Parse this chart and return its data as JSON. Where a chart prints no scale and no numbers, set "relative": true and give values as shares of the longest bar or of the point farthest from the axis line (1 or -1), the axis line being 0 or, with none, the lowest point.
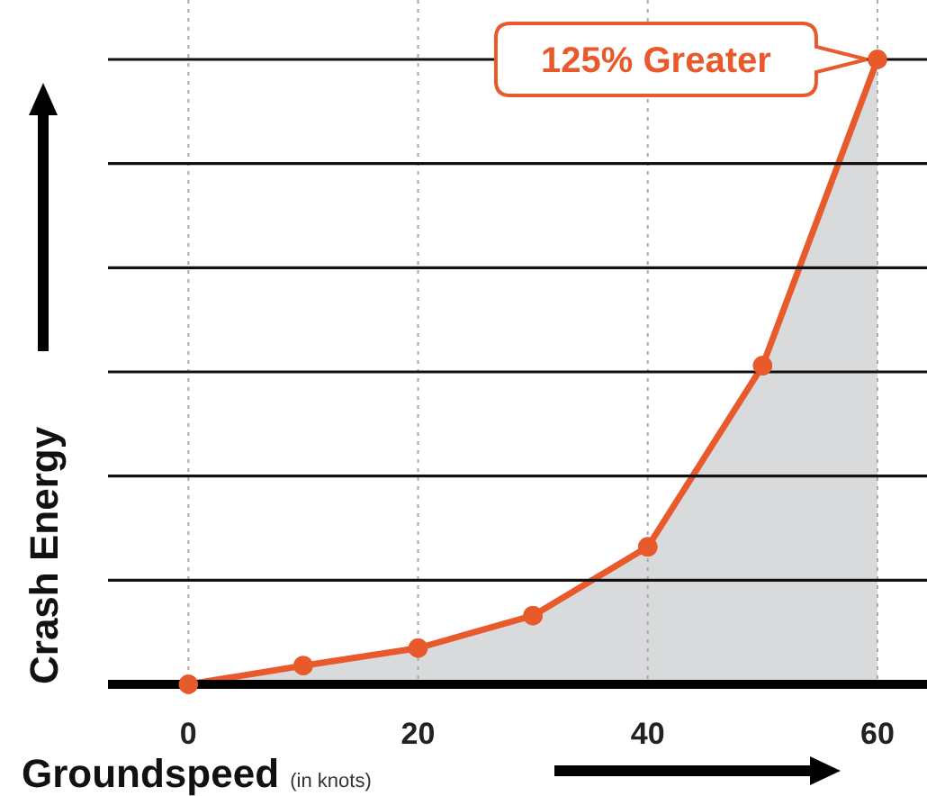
{
  "chart_data": {
    "type": "area",
    "relative": true,
    "xlabel": "Groundspeed (in knots)",
    "ylabel": "Crash Energy",
    "x": [
      0,
      10,
      20,
      30,
      40,
      50,
      60
    ],
    "xlim": [
      -7,
      64
    ],
    "xticks": [
      0,
      20,
      40,
      60
    ],
    "series": [
      {
        "color": "#e85a2c",
        "values": [
          0,
          0.03,
          0.058,
          0.11,
          0.22,
          0.51,
          1
        ]
      }
    ],
    "annotations": [
      {
        "text": "125% Greater",
        "x": 60,
        "y": 1
      }
    ],
    "grid": true,
    "marker": "circle",
    "line_style": "solid"
  }
}
